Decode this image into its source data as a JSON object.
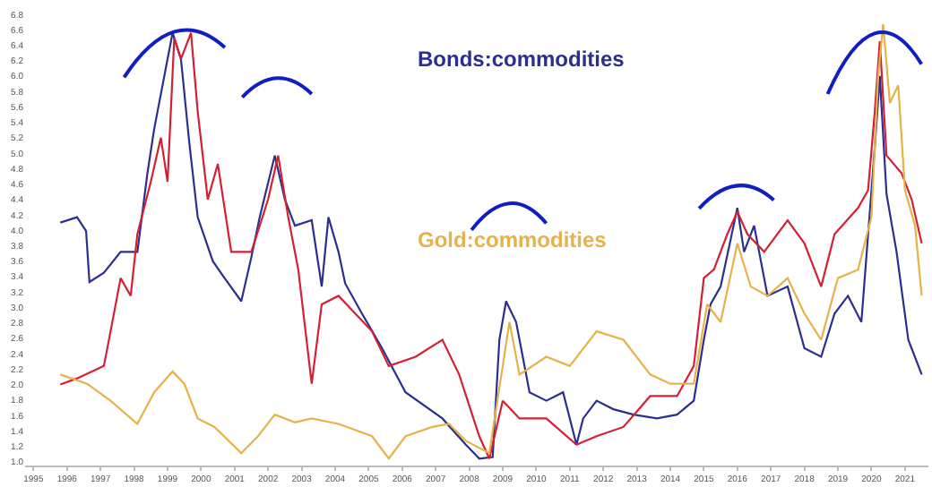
{
  "chart_data": {
    "type": "line",
    "xlim": [
      1994.75,
      2021.7
    ],
    "ylim": [
      0.95,
      6.8
    ],
    "xticks": [
      1995,
      1996,
      1997,
      1998,
      1999,
      2000,
      2001,
      2002,
      2003,
      2004,
      2005,
      2006,
      2007,
      2008,
      2009,
      2010,
      2011,
      2012,
      2013,
      2014,
      2015,
      2016,
      2017,
      2018,
      2019,
      2020,
      2021
    ],
    "yticks": [
      {
        "value": 1.0,
        "label": "1.0"
      },
      {
        "value": 1.2,
        "label": "1.2"
      },
      1.4,
      1.6,
      1.8,
      {
        "value": 2.0,
        "label": "2.0"
      },
      2.2,
      2.4,
      2.6,
      2.8,
      {
        "value": 3.0,
        "label": "3.0"
      },
      3.2,
      3.4,
      3.6,
      3.8,
      {
        "value": 4.0,
        "label": "4.0"
      },
      4.2,
      4.4,
      4.6,
      4.8,
      {
        "value": 5.0,
        "label": "5.0"
      },
      5.2,
      5.4,
      5.6,
      5.8,
      {
        "value": 6.0,
        "label": "6.0"
      },
      6.2,
      6.4,
      6.6,
      6.8
    ],
    "legend": false,
    "marker": "none",
    "line_style": "solid",
    "series": [
      {
        "name": "Bonds:commodities",
        "color": "#2b2f8f",
        "x": [
          1995.8,
          1996.3,
          1996.57,
          1996.67,
          1997.1,
          1997.6,
          1998.1,
          1998.4,
          1998.6,
          1999.0,
          1999.15,
          1999.4,
          1999.65,
          1999.9,
          2000.35,
          2000.7,
          2001.2,
          2001.5,
          2001.75,
          2002.2,
          2002.5,
          2002.8,
          2003.3,
          2003.6,
          2003.8,
          2004.1,
          2004.3,
          2004.8,
          2005.4,
          2006.1,
          2007.2,
          2007.9,
          2008.3,
          2008.7,
          2008.9,
          2009.1,
          2009.4,
          2009.8,
          2010.3,
          2010.8,
          2011.2,
          2011.4,
          2011.8,
          2012.3,
          2012.9,
          2013.6,
          2014.2,
          2014.7,
          2015.0,
          2015.2,
          2015.5,
          2016.0,
          2016.2,
          2016.5,
          2016.9,
          2017.5,
          2018.0,
          2018.5,
          2018.9,
          2019.3,
          2019.7,
          2020.1,
          2020.25,
          2020.45,
          2020.75,
          2021.1,
          2021.5
        ],
        "values": [
          4.1,
          4.17,
          3.99,
          3.33,
          3.45,
          3.72,
          3.72,
          4.74,
          5.31,
          6.22,
          6.56,
          6.22,
          5.13,
          4.17,
          3.6,
          3.38,
          3.08,
          3.65,
          4.17,
          4.97,
          4.4,
          4.06,
          4.13,
          3.27,
          4.17,
          3.72,
          3.31,
          2.92,
          2.47,
          1.9,
          1.56,
          1.22,
          1.04,
          1.06,
          2.58,
          3.08,
          2.81,
          1.9,
          1.79,
          1.9,
          1.22,
          1.56,
          1.79,
          1.68,
          1.61,
          1.56,
          1.61,
          1.79,
          2.58,
          3.04,
          3.27,
          4.29,
          3.72,
          4.06,
          3.15,
          3.27,
          2.47,
          2.36,
          2.92,
          3.15,
          2.81,
          5.08,
          6.0,
          4.47,
          3.72,
          2.58,
          2.13
        ]
      },
      {
        "color": "#d42035",
        "x": [
          1995.8,
          1996.3,
          1997.1,
          1997.3,
          1997.6,
          1997.9,
          1998.1,
          1998.5,
          1998.8,
          1999.0,
          1999.2,
          1999.4,
          1999.7,
          1999.9,
          2000.2,
          2000.5,
          2000.9,
          2001.5,
          2002.0,
          2002.3,
          2002.6,
          2002.9,
          2003.3,
          2003.6,
          2004.1,
          2004.6,
          2005.1,
          2005.6,
          2006.4,
          2007.2,
          2007.7,
          2008.3,
          2008.6,
          2009.0,
          2009.5,
          2010.3,
          2011.2,
          2011.8,
          2012.6,
          2013.4,
          2014.2,
          2014.7,
          2015.0,
          2015.3,
          2015.7,
          2016.0,
          2016.3,
          2016.8,
          2017.5,
          2018.0,
          2018.5,
          2018.9,
          2019.6,
          2019.9,
          2020.1,
          2020.25,
          2020.45,
          2020.9,
          2021.2,
          2021.5
        ],
        "values": [
          2.0,
          2.08,
          2.24,
          2.69,
          3.38,
          3.15,
          3.95,
          4.63,
          5.2,
          4.63,
          6.49,
          6.22,
          6.56,
          5.54,
          4.4,
          4.86,
          3.72,
          3.72,
          4.4,
          4.97,
          4.17,
          3.49,
          2.01,
          3.04,
          3.15,
          2.92,
          2.69,
          2.24,
          2.36,
          2.58,
          2.13,
          1.33,
          1.04,
          1.79,
          1.56,
          1.56,
          1.22,
          1.33,
          1.45,
          1.85,
          1.85,
          2.24,
          3.38,
          3.49,
          3.95,
          4.24,
          3.95,
          3.72,
          4.13,
          3.83,
          3.27,
          3.95,
          4.29,
          4.52,
          5.54,
          6.45,
          4.97,
          4.74,
          4.4,
          3.83
        ]
      },
      {
        "name": "Gold:commodities",
        "color": "#e6b24a",
        "x": [
          1995.8,
          1996.6,
          1997.3,
          1998.1,
          1998.6,
          1999.15,
          1999.5,
          1999.9,
          2000.4,
          2001.2,
          2001.7,
          2002.2,
          2002.8,
          2003.3,
          2004.1,
          2005.1,
          2005.6,
          2006.1,
          2006.9,
          2007.4,
          2007.9,
          2008.6,
          2009.0,
          2009.2,
          2009.5,
          2010.3,
          2011.0,
          2011.8,
          2012.6,
          2013.4,
          2014.0,
          2014.7,
          2015.1,
          2015.5,
          2016.0,
          2016.4,
          2016.9,
          2017.5,
          2018.0,
          2018.5,
          2019.0,
          2019.6,
          2020.0,
          2020.2,
          2020.35,
          2020.55,
          2020.8,
          2021.0,
          2021.3,
          2021.5
        ],
        "values": [
          2.13,
          2.01,
          1.79,
          1.49,
          1.9,
          2.17,
          2.01,
          1.56,
          1.45,
          1.11,
          1.33,
          1.61,
          1.51,
          1.56,
          1.49,
          1.33,
          1.04,
          1.33,
          1.45,
          1.49,
          1.27,
          1.11,
          2.24,
          2.81,
          2.13,
          2.36,
          2.24,
          2.69,
          2.58,
          2.13,
          2.01,
          2.01,
          3.04,
          2.81,
          3.83,
          3.27,
          3.15,
          3.38,
          2.92,
          2.58,
          3.38,
          3.49,
          4.17,
          6.0,
          6.67,
          5.65,
          5.88,
          4.52,
          4.06,
          3.15
        ]
      }
    ]
  }
}
